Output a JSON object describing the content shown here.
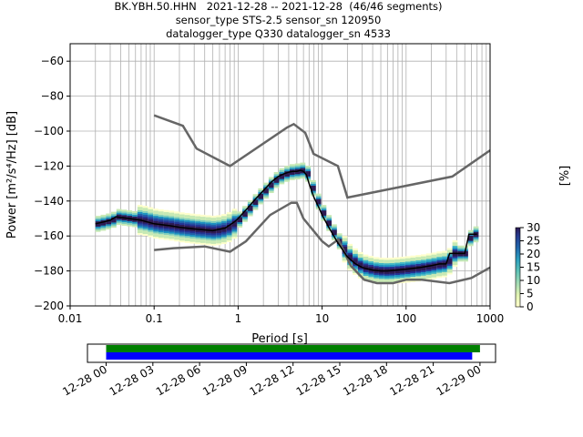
{
  "title_lines": [
    "BK.YBH.50.HHN   2021-12-28 -- 2021-12-28  (46/46 segments)",
    "sensor_type STS-2.5 sensor_sn 120950",
    "datalogger_type Q330 datalogger_sn 4533"
  ],
  "colors": {
    "model_lines": "#666666",
    "mode_line": "#000000",
    "grid": "#b0b0b0",
    "colormap": [
      "#ffffcc",
      "#c7e9b4",
      "#7fcdbb",
      "#41b6c4",
      "#1d91c0",
      "#225ea8",
      "#253494",
      "#2d1a52"
    ],
    "timeline_green": "#008000",
    "timeline_blue": "#0000ff"
  },
  "chart_data": [
    {
      "type": "heatmap",
      "xlabel": "Period [s]",
      "ylabel": "Power [m²/s⁴/Hz] [dB]",
      "x_scale": "log",
      "xlim": [
        0.01,
        1000
      ],
      "ylim": [
        -200,
        -50
      ],
      "x_ticks": [
        0.01,
        0.1,
        1,
        10,
        100,
        1000
      ],
      "x_tick_labels": [
        "0.01",
        "0.1",
        "1",
        "10",
        "100",
        "1000"
      ],
      "y_ticks": [
        -200,
        -180,
        -160,
        -140,
        -120,
        -100,
        -80,
        -60
      ],
      "y_tick_labels": [
        "−200",
        "−180",
        "−160",
        "−140",
        "−120",
        "−100",
        "−80",
        "−60"
      ],
      "grid": true,
      "colorbar": {
        "label": "[%]",
        "range": [
          0,
          30
        ],
        "ticks": [
          0,
          5,
          10,
          15,
          20,
          25,
          30
        ],
        "tick_labels": [
          "0",
          "5",
          "10",
          "15",
          "20",
          "25",
          "30"
        ]
      },
      "series": [
        {
          "role": "high-noise-model",
          "x": [
            0.1,
            0.22,
            0.32,
            0.8,
            3.8,
            4.6,
            6.3,
            7.9,
            15.4,
            20,
            354.8,
            1000
          ],
          "y": [
            -91,
            -97,
            -110,
            -120,
            -98,
            -96,
            -101,
            -113,
            -120,
            -138,
            -126,
            -111
          ]
        },
        {
          "role": "low-noise-model",
          "x": [
            0.1,
            0.17,
            0.4,
            0.8,
            1.24,
            2.4,
            4.3,
            5.0,
            6.0,
            10,
            12,
            15.6,
            21.9,
            31.6,
            45,
            70,
            101,
            154,
            328,
            600,
            1000
          ],
          "y": [
            -168,
            -167,
            -166,
            -169,
            -163,
            -148,
            -141,
            -141,
            -150,
            -163,
            -166,
            -162,
            -177,
            -185,
            -187,
            -187,
            -185,
            -185,
            -187,
            -184,
            -178
          ]
        },
        {
          "role": "mode",
          "x": [
            0.02,
            0.025,
            0.03,
            0.035,
            0.05,
            0.07,
            0.1,
            0.15,
            0.2,
            0.3,
            0.5,
            0.7,
            0.9,
            1.0,
            1.3,
            1.6,
            2.0,
            2.5,
            3.0,
            3.5,
            4.0,
            4.5,
            5.0,
            5.5,
            6.0,
            6.5,
            7.0,
            8.0,
            9.0,
            10,
            12,
            15,
            20,
            25,
            30,
            40,
            50,
            60,
            80,
            100,
            150,
            200,
            250,
            300,
            330,
            350,
            400,
            450,
            500,
            560,
            700
          ],
          "y": [
            -153,
            -152,
            -151,
            -149,
            -150,
            -151,
            -153,
            -154,
            -155,
            -156,
            -157,
            -155.5,
            -152,
            -150,
            -144,
            -139,
            -134,
            -129,
            -126,
            -124.5,
            -123.5,
            -123,
            -123,
            -122.5,
            -123,
            -125,
            -130,
            -138,
            -143,
            -148,
            -155,
            -163,
            -172,
            -176,
            -178,
            -179.5,
            -180,
            -180,
            -179.5,
            -179,
            -178,
            -177,
            -176,
            -176,
            -170,
            -170,
            -170,
            -170,
            -170,
            -159,
            -159
          ]
        }
      ]
    },
    {
      "type": "bar",
      "role": "data-availability-timeline",
      "x_tick_labels": [
        "12-28 00",
        "12-28 03",
        "12-28 06",
        "12-28 09",
        "12-28 12",
        "12-28 15",
        "12-28 18",
        "12-28 21",
        "12-29 00"
      ],
      "xlim_hours": [
        -1.2,
        25.0
      ],
      "series": [
        {
          "color": "green",
          "start_hour": 0.0,
          "end_hour": 24.0
        },
        {
          "color": "blue",
          "start_hour": 0.0,
          "end_hour": 23.5
        }
      ]
    }
  ]
}
